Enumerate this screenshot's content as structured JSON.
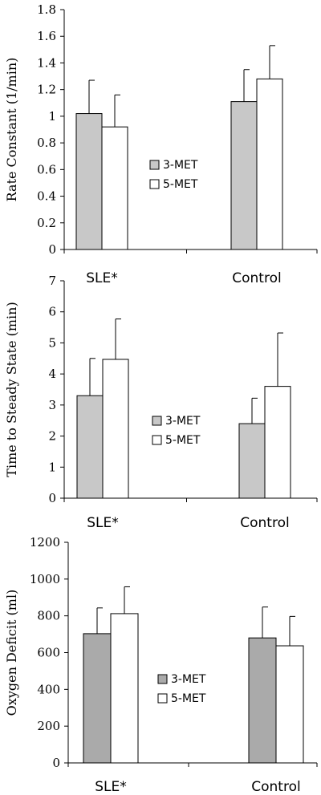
{
  "chart_data": [
    {
      "type": "bar",
      "ylabel": "Rate Constant  (1/min)",
      "categories": [
        "SLE*",
        "Control"
      ],
      "ylim": [
        0,
        1.8
      ],
      "yticks": [
        "0",
        "0.2",
        "0.4",
        "0.6",
        "0.8",
        "1",
        "1.2",
        "1.4",
        "1.6",
        "1.8"
      ],
      "series": [
        {
          "name": "3-MET",
          "color": "#c8c8c8",
          "values": [
            1.02,
            1.11
          ],
          "errors": [
            0.25,
            0.24
          ]
        },
        {
          "name": "5-MET",
          "color": "#ffffff",
          "values": [
            0.92,
            1.28
          ],
          "errors": [
            0.24,
            0.25
          ]
        }
      ],
      "legend_position": "center"
    },
    {
      "type": "bar",
      "ylabel": "Time to Steady State  (min)",
      "categories": [
        "SLE*",
        "Control"
      ],
      "ylim": [
        0,
        7
      ],
      "yticks": [
        "0",
        "1",
        "2",
        "3",
        "4",
        "5",
        "6",
        "7"
      ],
      "series": [
        {
          "name": "3-MET",
          "color": "#c8c8c8",
          "values": [
            3.3,
            2.4
          ],
          "errors": [
            1.2,
            0.82
          ]
        },
        {
          "name": "5-MET",
          "color": "#ffffff",
          "values": [
            4.47,
            3.6
          ],
          "errors": [
            1.3,
            1.72
          ]
        }
      ],
      "legend_position": "center"
    },
    {
      "type": "bar",
      "ylabel": "Oxygen Deficit (ml)",
      "categories": [
        "SLE*",
        "Control"
      ],
      "ylim": [
        0,
        1200
      ],
      "yticks": [
        "0",
        "200",
        "400",
        "600",
        "800",
        "1000",
        "1200"
      ],
      "series": [
        {
          "name": "3-MET",
          "color": "#aaaaaa",
          "values": [
            703,
            680
          ],
          "errors": [
            140,
            168
          ]
        },
        {
          "name": "5-MET",
          "color": "#ffffff",
          "values": [
            812,
            637
          ],
          "errors": [
            146,
            160
          ]
        }
      ],
      "legend_position": "center"
    }
  ]
}
